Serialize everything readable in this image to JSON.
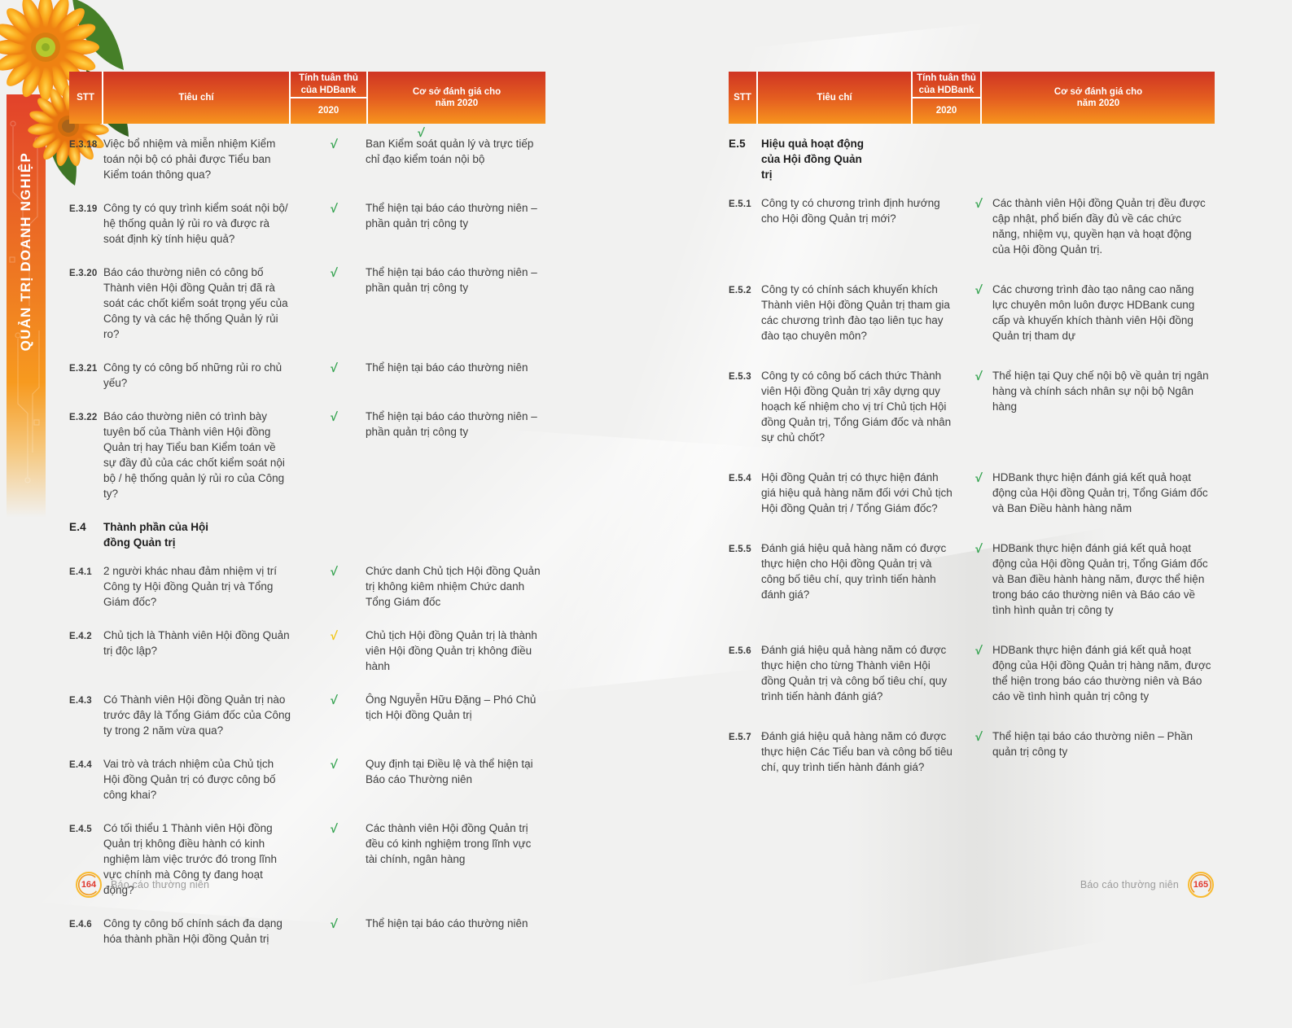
{
  "sidebar": {
    "label": "QUẢN TRỊ DOANH NGHIỆP"
  },
  "table_header": {
    "stt": "STT",
    "criteria": "Tiêu chí",
    "compliance_line1": "Tính tuân thủ",
    "compliance_line2": "của HDBank",
    "year": "2020",
    "basis_line1": "Cơ sở đánh giá cho",
    "basis_line2": "năm 2020"
  },
  "check_symbol": "√",
  "colors": {
    "header_top": "#cf3423",
    "header_bottom": "#f7941e",
    "sidebar_top": "#e2422a",
    "check_green": "#2fa14b",
    "check_yellow": "#f2c40c",
    "page_number_red": "#e0392e",
    "badge_ring_yellow": "#f9bb30",
    "badge_ring_orange": "#f0981d"
  },
  "left_page": {
    "rows": [
      {
        "type": "item",
        "id": "E.3.18",
        "question": "Việc bổ nhiệm và miễn nhiệm Kiểm toán nội bộ có phải được Tiểu ban Kiểm toán thông qua?",
        "check": "green",
        "basis": "Ban Kiểm soát quản lý và trực tiếp chỉ đạo kiểm toán nội bộ",
        "stray_check": true
      },
      {
        "type": "item",
        "id": "E.3.19",
        "question": "Công ty có quy trình kiểm soát nội bộ/ hệ thống quản lý rủi ro và được rà soát định kỳ tính hiệu quả?",
        "check": "green",
        "basis": "Thể hiện tại báo cáo thường niên – phần quản trị công ty"
      },
      {
        "type": "item",
        "id": "E.3.20",
        "question": "Báo cáo thường niên có công bố Thành viên Hội đồng Quản trị đã rà soát các chốt kiểm soát trọng yếu của Công ty và các hệ thống Quản lý rủi ro?",
        "check": "green",
        "basis": "Thể hiện tại báo cáo thường niên – phần quản trị công ty"
      },
      {
        "type": "item",
        "id": "E.3.21",
        "question": "Công ty có công bố những rủi ro chủ yếu?",
        "check": "green",
        "basis": "Thể hiện tại báo cáo thường niên"
      },
      {
        "type": "item",
        "id": "E.3.22",
        "question": "Báo cáo thường niên có trình bày tuyên bố của Thành viên Hội đồng Quản trị hay Tiểu ban Kiểm toán về sự đầy đủ của các chốt kiểm soát nội bộ / hệ thống quản lý rủi ro của Công ty?",
        "check": "green",
        "basis": "Thể hiện tại báo cáo thường niên – phần quản trị công ty"
      },
      {
        "type": "section",
        "id": "E.4",
        "title": "Thành phần của Hội đồng Quản trị"
      },
      {
        "type": "item",
        "id": "E.4.1",
        "question": "2 người khác nhau đảm nhiệm vị trí Công ty Hội đồng Quản trị và Tổng Giám đốc?",
        "check": "green",
        "basis": "Chức danh Chủ tịch Hội đồng Quản trị không kiêm nhiệm Chức danh Tổng Giám đốc"
      },
      {
        "type": "item",
        "id": "E.4.2",
        "question": "Chủ tịch là Thành viên Hội đồng Quản trị độc lập?",
        "check": "yellow",
        "basis": "Chủ tịch Hội đồng Quản trị là thành viên Hội đồng Quản trị không điều hành"
      },
      {
        "type": "item",
        "id": "E.4.3",
        "question": "Có Thành viên Hội đồng Quản trị nào trước đây là Tổng Giám đốc của Công ty trong 2 năm vừa qua?",
        "check": "green",
        "basis": "Ông Nguyễn Hữu Đặng – Phó Chủ tịch Hội đồng Quản trị"
      },
      {
        "type": "item",
        "id": "E.4.4",
        "question": "Vai trò và trách nhiệm của Chủ tịch Hội đồng Quản trị có được công bố công khai?",
        "check": "green",
        "basis": "Quy định tại Điều lệ và thể hiện tại Báo cáo Thường niên"
      },
      {
        "type": "item",
        "id": "E.4.5",
        "question": "Có tối thiểu 1 Thành viên Hội đồng Quản trị không điều hành có kinh nghiệm làm việc trước đó trong lĩnh vực chính mà Công ty đang hoạt động?",
        "check": "green",
        "basis": "Các thành viên Hội đồng Quản trị đều có kinh nghiệm trong lĩnh vực tài chính, ngân hàng"
      },
      {
        "type": "item",
        "id": "E.4.6",
        "question": "Công ty công bố chính sách đa dạng hóa thành phần Hội đồng Quản trị",
        "check": "green",
        "basis": "Thể hiện tại báo cáo thường niên"
      }
    ],
    "footer": {
      "page_number": "164",
      "label": "Báo cáo thường niên"
    }
  },
  "right_page": {
    "rows": [
      {
        "type": "section",
        "id": "E.5",
        "title": "Hiệu quả hoạt động của Hội đồng Quản trị"
      },
      {
        "type": "item",
        "id": "E.5.1",
        "question": "Công ty có chương trình định hướng cho Hội đồng Quản trị mới?",
        "check": "green",
        "basis": "Các thành viên Hội đồng Quản trị đều được cập nhật, phổ biến đầy đủ về các chức năng, nhiệm vụ, quyền hạn và hoạt động của Hội đồng Quản trị."
      },
      {
        "type": "item",
        "id": "E.5.2",
        "question": "Công ty có chính sách khuyến khích Thành viên Hội đồng Quản trị tham gia các chương trình đào tạo liên tục hay đào tạo chuyên môn?",
        "check": "green",
        "basis": "Các chương trình đào tạo nâng cao năng lực chuyên môn luôn được HDBank cung cấp và khuyến khích thành viên Hội đồng Quản trị tham dự"
      },
      {
        "type": "item",
        "id": "E.5.3",
        "question": "Công ty có công bố cách thức Thành viên Hội đồng Quản trị xây dựng quy hoạch kế nhiệm cho vị trí Chủ tịch Hội đồng Quản trị, Tổng Giám đốc và nhân sự chủ chốt?",
        "check": "green",
        "basis": "Thể hiện tại Quy chế nội bộ về quản trị ngân hàng và chính sách nhân sự nội bộ Ngân hàng"
      },
      {
        "type": "item",
        "id": "E.5.4",
        "question": "Hội đồng Quản trị có thực hiện đánh giá hiệu quả hàng năm đối với Chủ tịch Hội đồng Quản trị / Tổng Giám đốc?",
        "check": "green",
        "basis": "HDBank thực hiện đánh giá kết quả hoạt động của Hội đồng Quản trị, Tổng Giám đốc và Ban Điều hành hàng năm"
      },
      {
        "type": "item",
        "id": "E.5.5",
        "question": "Đánh giá hiệu quả hàng năm có được thực hiện cho Hội đồng Quản trị và công bố tiêu chí, quy trình tiến hành đánh giá?",
        "check": "green",
        "basis": "HDBank thực hiện đánh giá kết quả hoạt động của Hội đồng Quản trị, Tổng Giám đốc và Ban điều hành hàng năm, được thể hiện trong báo cáo thường niên và Báo cáo về tình hình quản trị công ty"
      },
      {
        "type": "item",
        "id": "E.5.6",
        "question": "Đánh giá hiệu quả hàng năm có được thực hiện cho từng Thành viên Hội đồng Quản trị và công bố tiêu chí, quy trình tiến hành đánh giá?",
        "check": "green",
        "basis": "HDBank thực hiện đánh giá kết quả hoạt động của Hội đồng Quản trị hàng năm, được thể hiện trong báo cáo thường niên và Báo cáo về tình hình quản trị công ty"
      },
      {
        "type": "item",
        "id": "E.5.7",
        "question": "Đánh giá hiệu quả hàng năm có được thực hiện Các Tiểu ban và công bố tiêu chí, quy trình tiến hành đánh giá?",
        "check": "green",
        "basis": "Thể hiện tại báo cáo thường niên – Phần quản trị công ty"
      }
    ],
    "footer": {
      "page_number": "165",
      "label": "Báo cáo thường niên"
    }
  }
}
